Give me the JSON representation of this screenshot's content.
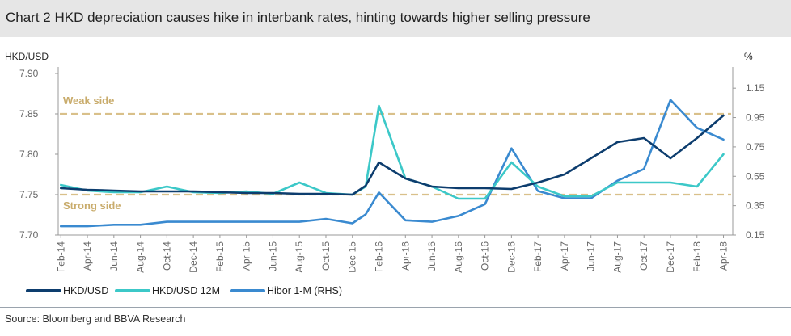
{
  "title": "Chart 2 HKD depreciation causes hike in interbank rates, hinting towards higher selling pressure",
  "source": "Source: Bloomberg and BBVA Research",
  "chart_data": {
    "type": "line",
    "ylabel_left": "HKD/USD",
    "ylabel_right": "%",
    "ylim_left": [
      7.7,
      7.9
    ],
    "ylim_right": [
      0.15,
      1.25
    ],
    "left_ticks": [
      "7.70",
      "7.75",
      "7.80",
      "7.85",
      "7.90"
    ],
    "right_ticks": [
      "0.15",
      "0.35",
      "0.55",
      "0.75",
      "0.95",
      "1.15"
    ],
    "x_ticks": [
      "Feb-14",
      "Apr-14",
      "Jun-14",
      "Aug-14",
      "Oct-14",
      "Dec-14",
      "Feb-15",
      "Apr-15",
      "Jun-15",
      "Aug-15",
      "Oct-15",
      "Dec-15",
      "Feb-16",
      "Apr-16",
      "Jun-16",
      "Aug-16",
      "Oct-16",
      "Dec-16",
      "Feb-17",
      "Apr-17",
      "Jun-17",
      "Aug-17",
      "Oct-17",
      "Dec-17",
      "Feb-18",
      "Apr-18"
    ],
    "x_domain": [
      "2014-02",
      "2018-04"
    ],
    "grid": false,
    "legend_position": "bottom-left",
    "annotations": [
      {
        "text": "Weak side",
        "axis": "left",
        "y": 7.85
      },
      {
        "text": "Strong side",
        "axis": "left",
        "y": 7.75
      }
    ],
    "colors": {
      "hkd_usd": "#0d3d6e",
      "hkd_usd_12m": "#3cc8c8",
      "hibor": "#3a8ad0",
      "band": "#d9c08a"
    },
    "series": [
      {
        "name": "HKD/USD",
        "axis": "left",
        "x": [
          "2014-02",
          "2014-04",
          "2014-06",
          "2014-08",
          "2014-10",
          "2014-12",
          "2015-02",
          "2015-04",
          "2015-06",
          "2015-08",
          "2015-10",
          "2015-12",
          "2016-01",
          "2016-02",
          "2016-04",
          "2016-06",
          "2016-08",
          "2016-10",
          "2016-12",
          "2017-02",
          "2017-04",
          "2017-06",
          "2017-08",
          "2017-10",
          "2017-12",
          "2018-02",
          "2018-04"
        ],
        "values": [
          7.758,
          7.756,
          7.755,
          7.754,
          7.754,
          7.754,
          7.753,
          7.752,
          7.752,
          7.751,
          7.751,
          7.75,
          7.761,
          7.79,
          7.77,
          7.76,
          7.758,
          7.758,
          7.757,
          7.765,
          7.775,
          7.795,
          7.815,
          7.82,
          7.795,
          7.82,
          7.848
        ]
      },
      {
        "name": "HKD/USD 12M",
        "axis": "left",
        "x": [
          "2014-02",
          "2014-04",
          "2014-06",
          "2014-08",
          "2014-10",
          "2014-12",
          "2015-02",
          "2015-04",
          "2015-06",
          "2015-08",
          "2015-10",
          "2015-12",
          "2016-01",
          "2016-02",
          "2016-04",
          "2016-06",
          "2016-08",
          "2016-10",
          "2016-12",
          "2017-02",
          "2017-04",
          "2017-06",
          "2017-08",
          "2017-10",
          "2017-12",
          "2018-02",
          "2018-04"
        ],
        "values": [
          7.762,
          7.755,
          7.753,
          7.753,
          7.76,
          7.753,
          7.752,
          7.754,
          7.751,
          7.765,
          7.752,
          7.75,
          7.76,
          7.86,
          7.77,
          7.76,
          7.745,
          7.745,
          7.79,
          7.76,
          7.748,
          7.748,
          7.765,
          7.765,
          7.765,
          7.76,
          7.8
        ]
      },
      {
        "name": "Hibor 1-M (RHS)",
        "axis": "right",
        "x": [
          "2014-02",
          "2014-04",
          "2014-06",
          "2014-08",
          "2014-10",
          "2014-12",
          "2015-02",
          "2015-04",
          "2015-06",
          "2015-08",
          "2015-10",
          "2015-12",
          "2016-01",
          "2016-02",
          "2016-04",
          "2016-06",
          "2016-08",
          "2016-10",
          "2016-12",
          "2017-02",
          "2017-04",
          "2017-06",
          "2017-08",
          "2017-10",
          "2017-12",
          "2018-02",
          "2018-04"
        ],
        "values": [
          0.21,
          0.21,
          0.22,
          0.22,
          0.24,
          0.24,
          0.24,
          0.24,
          0.24,
          0.24,
          0.26,
          0.23,
          0.29,
          0.44,
          0.25,
          0.24,
          0.28,
          0.36,
          0.74,
          0.45,
          0.4,
          0.4,
          0.52,
          0.6,
          1.07,
          0.88,
          0.8
        ]
      }
    ]
  },
  "legend": [
    {
      "label": "HKD/USD",
      "color": "#0d3d6e"
    },
    {
      "label": "HKD/USD 12M",
      "color": "#3cc8c8"
    },
    {
      "label": "Hibor 1-M (RHS)",
      "color": "#3a8ad0"
    }
  ]
}
